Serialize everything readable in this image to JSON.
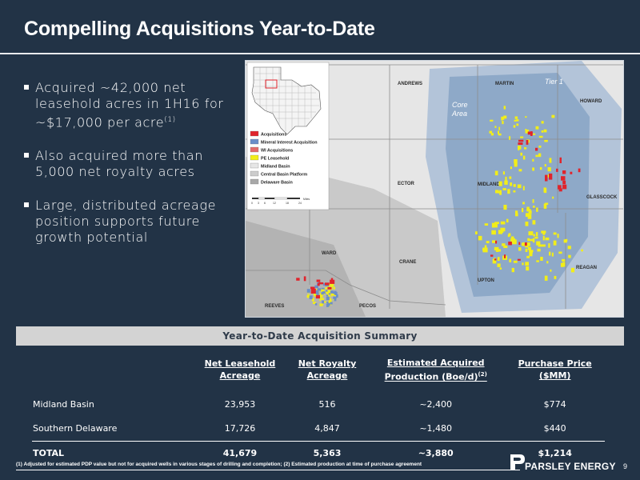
{
  "slide": {
    "title": "Compelling Acquisitions Year-to-Date",
    "page_number": "9"
  },
  "bullets": [
    {
      "text": "Acquired ~42,000 net leasehold acres in 1H16 for ~$17,000 per acre",
      "sup": "(1)"
    },
    {
      "text": "Also acquired more than 5,000 net royalty acres",
      "sup": ""
    },
    {
      "text": "Large, distributed acreage position supports future growth potential",
      "sup": ""
    }
  ],
  "map": {
    "counties": [
      "ANDREWS",
      "MARTIN",
      "HOWARD",
      "ECTOR",
      "MIDLAND",
      "GLASSCOCK",
      "WARD",
      "CRANE",
      "UPTON",
      "REAGAN",
      "REEVES",
      "PECOS"
    ],
    "zone_labels": {
      "tier": "Tier 1",
      "core_line1": "Core",
      "core_line2": "Area"
    },
    "legend": [
      {
        "label": "Acquisitions",
        "color": "#e0242c"
      },
      {
        "label": "Mineral Interest Acquisition",
        "color": "#6a8ec9"
      },
      {
        "label": "WI Acquisitions",
        "color": "#e26a6a"
      },
      {
        "label": "PE Leasehold",
        "color": "#f2ee18"
      },
      {
        "label": "Midland Basin",
        "color": "#e6e6e6"
      },
      {
        "label": "Central Basin Platform",
        "color": "#cccccc"
      },
      {
        "label": "Delaware Basin",
        "color": "#a8a8a8"
      }
    ],
    "scale_ticks": [
      "0",
      "3",
      "6",
      "12",
      "18",
      "24"
    ],
    "scale_unit": "Miles",
    "colors": {
      "tier_zone": "#b3c4d9",
      "core_zone": "#8ea9c8",
      "acquisition": "#e0242c",
      "leasehold": "#f2ee18",
      "mineral": "#6a8ec9"
    }
  },
  "table": {
    "title": "Year-to-Date Acquisition Summary",
    "headers": [
      {
        "line1": "",
        "line2": ""
      },
      {
        "line1": "Net Leasehold",
        "line2": "Acreage"
      },
      {
        "line1": "Net Royalty",
        "line2": "Acreage"
      },
      {
        "line1": "Estimated Acquired",
        "line2": "Production (Boe/d)",
        "sup": "(2)"
      },
      {
        "line1": "Purchase Price",
        "line2": "($MM)"
      }
    ],
    "rows": [
      {
        "name": "Midland Basin",
        "leasehold": "23,953",
        "royalty": "516",
        "production": "~2,400",
        "price": "$774"
      },
      {
        "name": "Southern Delaware",
        "leasehold": "17,726",
        "royalty": "4,847",
        "production": "~1,480",
        "price": "$440"
      }
    ],
    "total": {
      "name": "TOTAL",
      "leasehold": "41,679",
      "royalty": "5,363",
      "production": "~3,880",
      "price": "$1,214"
    }
  },
  "footnote": "(1) Adjusted for estimated PDP value but not for acquired wells in various stages of drilling and completion; (2) Estimated production at time of purchase agreement",
  "logo": {
    "text": "PARSLEY ENERGY"
  }
}
